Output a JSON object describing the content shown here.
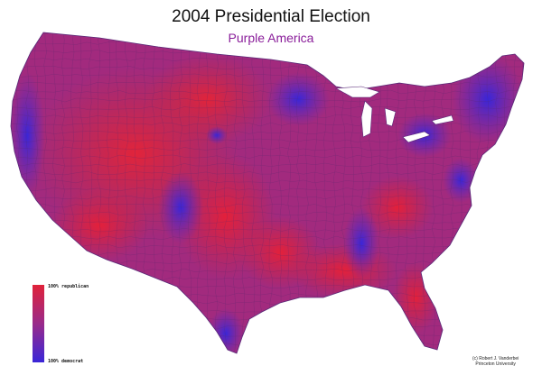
{
  "title": "2004 Presidential Election",
  "subtitle": "Purple America",
  "legend": {
    "top_label": "100% republican",
    "bottom_label": "100% democrat"
  },
  "credit": {
    "line1": "(c) Robert J. Vanderbei",
    "line2": "Princeton University"
  },
  "colors": {
    "republican": "#e0223a",
    "democrat": "#3a26d8",
    "mixed": "#9a2a8a",
    "border": "#6a2a80"
  }
}
